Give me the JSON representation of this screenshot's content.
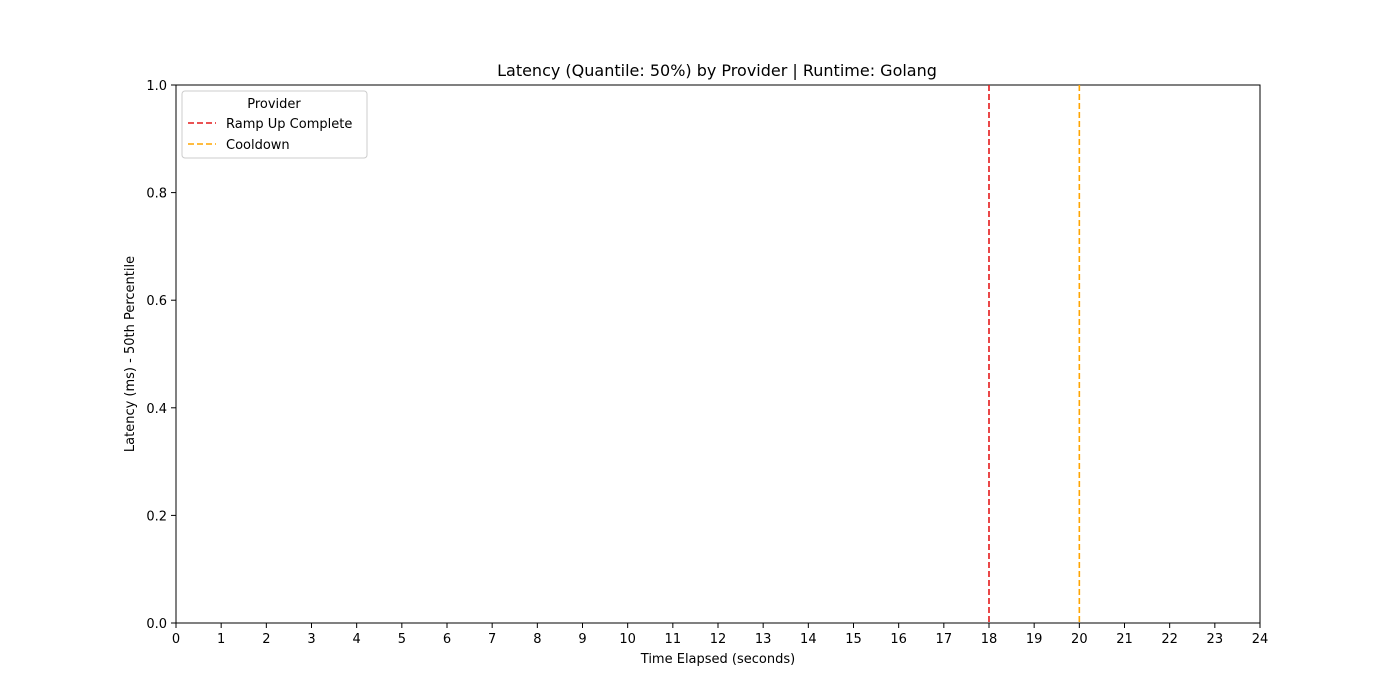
{
  "chart_data": {
    "type": "line",
    "title": "Latency (Quantile: 50%) by Provider | Runtime: Golang",
    "xlabel": "Time Elapsed (seconds)",
    "ylabel": "Latency (ms) - 50th Percentile",
    "xlim": [
      0,
      24
    ],
    "ylim": [
      0,
      1.0
    ],
    "x_ticks": [
      "0",
      "1",
      "2",
      "3",
      "4",
      "5",
      "6",
      "7",
      "8",
      "9",
      "10",
      "11",
      "12",
      "13",
      "14",
      "15",
      "16",
      "17",
      "18",
      "19",
      "20",
      "21",
      "22",
      "23",
      "24"
    ],
    "y_ticks": [
      "0.0",
      "0.2",
      "0.4",
      "0.6",
      "0.8",
      "1.0"
    ],
    "grid": false,
    "legend": {
      "title": "Provider",
      "placement": "top-left"
    },
    "series": [],
    "vlines": [
      {
        "name": "Ramp Up Complete",
        "x": 18,
        "color": "#e41a1c",
        "style": "dashed"
      },
      {
        "name": "Cooldown",
        "x": 20,
        "color": "#ffa500",
        "style": "dashed"
      }
    ]
  }
}
